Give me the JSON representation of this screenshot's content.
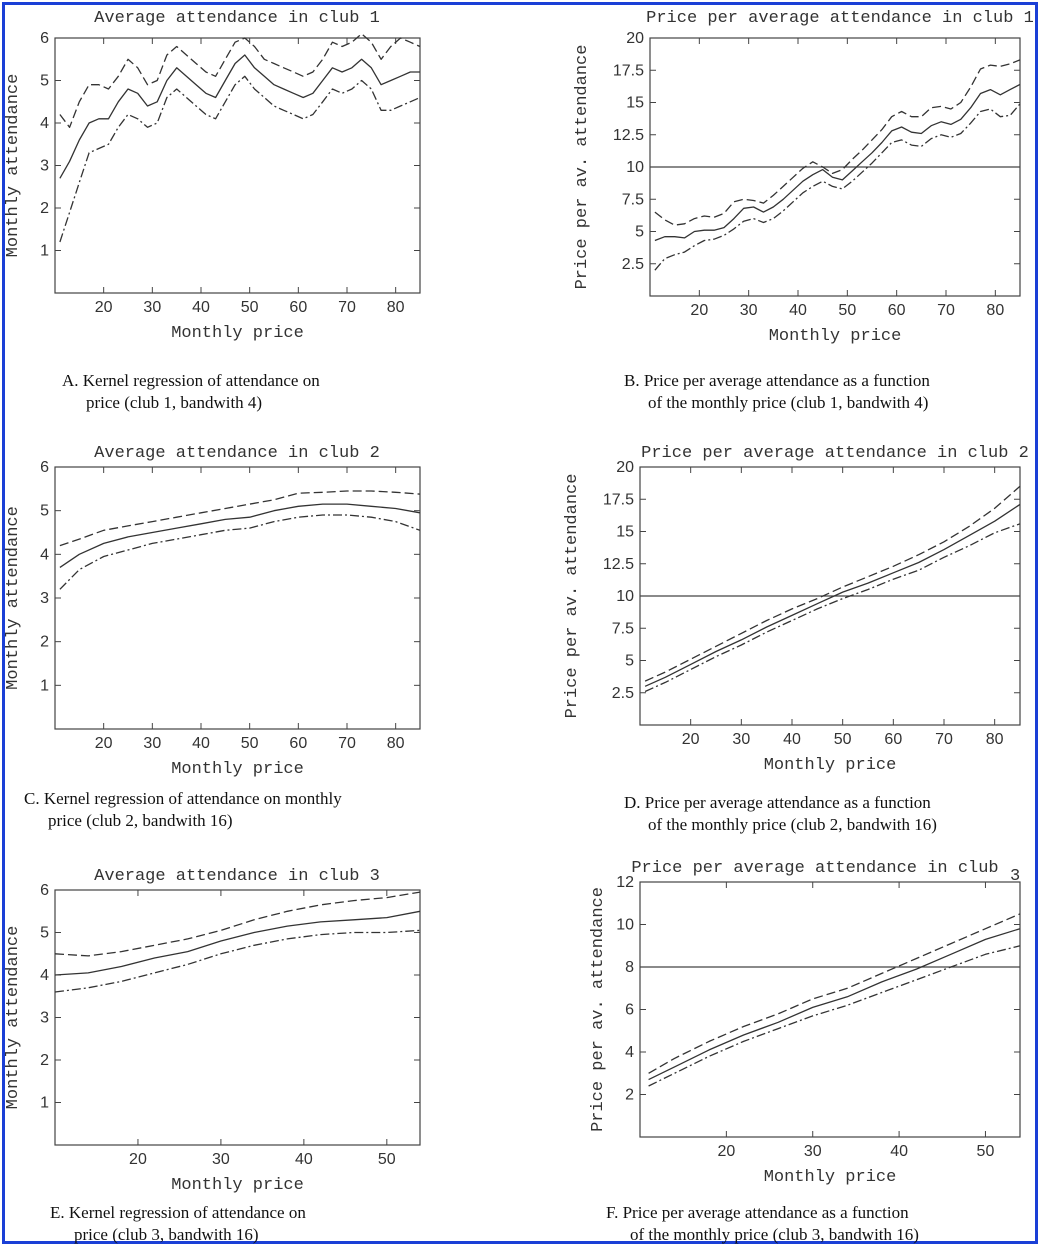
{
  "chart_data": [
    {
      "id": "A",
      "type": "line",
      "title": "Average attendance in club 1",
      "xlabel": "Monthly price",
      "ylabel": "Monthly attendance",
      "xlim": [
        10,
        85
      ],
      "ylim": [
        0,
        6
      ],
      "xticks": [
        20,
        30,
        40,
        50,
        60,
        70,
        80
      ],
      "yticks": [
        1,
        2,
        3,
        4,
        5,
        6
      ],
      "series": [
        {
          "style": "solid",
          "x": [
            11,
            13,
            15,
            17,
            19,
            21,
            23,
            25,
            27,
            29,
            31,
            33,
            35,
            37,
            39,
            41,
            43,
            45,
            47,
            49,
            51,
            53,
            55,
            57,
            59,
            61,
            63,
            65,
            67,
            69,
            71,
            73,
            75,
            77,
            79,
            81,
            83,
            85
          ],
          "values": [
            2.7,
            3.1,
            3.6,
            4.0,
            4.1,
            4.1,
            4.5,
            4.8,
            4.7,
            4.4,
            4.5,
            5.0,
            5.3,
            5.1,
            4.9,
            4.7,
            4.6,
            5.0,
            5.4,
            5.6,
            5.3,
            5.1,
            4.9,
            4.8,
            4.7,
            4.6,
            4.7,
            5.0,
            5.3,
            5.2,
            5.3,
            5.5,
            5.3,
            4.9,
            5.0,
            5.1,
            5.2,
            5.2
          ]
        },
        {
          "style": "dashed",
          "x": [
            11,
            13,
            15,
            17,
            19,
            21,
            23,
            25,
            27,
            29,
            31,
            33,
            35,
            37,
            39,
            41,
            43,
            45,
            47,
            49,
            51,
            53,
            55,
            57,
            59,
            61,
            63,
            65,
            67,
            69,
            71,
            73,
            75,
            77,
            79,
            81,
            83,
            85
          ],
          "values": [
            4.2,
            3.9,
            4.5,
            4.9,
            4.9,
            4.8,
            5.1,
            5.5,
            5.3,
            4.9,
            5.0,
            5.6,
            5.8,
            5.6,
            5.4,
            5.2,
            5.1,
            5.5,
            5.9,
            6.0,
            5.8,
            5.5,
            5.4,
            5.3,
            5.2,
            5.1,
            5.2,
            5.5,
            5.9,
            5.8,
            5.9,
            6.1,
            5.9,
            5.5,
            5.8,
            6.0,
            5.9,
            5.8
          ]
        },
        {
          "style": "dashed",
          "x": [
            11,
            13,
            15,
            17,
            19,
            21,
            23,
            25,
            27,
            29,
            31,
            33,
            35,
            37,
            39,
            41,
            43,
            45,
            47,
            49,
            51,
            53,
            55,
            57,
            59,
            61,
            63,
            65,
            67,
            69,
            71,
            73,
            75,
            77,
            79,
            81,
            83,
            85
          ],
          "values": [
            1.2,
            1.9,
            2.6,
            3.3,
            3.4,
            3.5,
            3.9,
            4.2,
            4.1,
            3.9,
            4.0,
            4.6,
            4.8,
            4.6,
            4.4,
            4.2,
            4.1,
            4.5,
            4.9,
            5.1,
            4.8,
            4.6,
            4.4,
            4.3,
            4.2,
            4.1,
            4.2,
            4.5,
            4.8,
            4.7,
            4.8,
            5.0,
            4.8,
            4.3,
            4.3,
            4.4,
            4.5,
            4.6
          ]
        }
      ],
      "caption": [
        "A. Kernel regression of attendance on",
        "price (club 1, bandwith 4)"
      ]
    },
    {
      "id": "B",
      "type": "line",
      "title": "Price per average attendance in club 1",
      "xlabel": "Monthly price",
      "ylabel": "Price per av. attendance",
      "xlim": [
        10,
        85
      ],
      "ylim": [
        0,
        20
      ],
      "xticks": [
        20,
        30,
        40,
        50,
        60,
        70,
        80
      ],
      "yticks": [
        2.5,
        5,
        7.5,
        10,
        12.5,
        15,
        17.5,
        20
      ],
      "hline": 10,
      "series": [
        {
          "style": "solid",
          "x": [
            11,
            13,
            15,
            17,
            19,
            21,
            23,
            25,
            27,
            29,
            31,
            33,
            35,
            37,
            39,
            41,
            43,
            45,
            47,
            49,
            51,
            53,
            55,
            57,
            59,
            61,
            63,
            65,
            67,
            69,
            71,
            73,
            75,
            77,
            79,
            81,
            83,
            85
          ],
          "values": [
            4.3,
            4.6,
            4.6,
            4.5,
            5.0,
            5.1,
            5.1,
            5.3,
            6.0,
            6.8,
            6.9,
            6.5,
            6.9,
            7.5,
            8.2,
            8.9,
            9.4,
            9.8,
            9.2,
            9.0,
            9.7,
            10.4,
            11.1,
            11.9,
            12.8,
            13.1,
            12.7,
            12.6,
            13.2,
            13.5,
            13.3,
            13.7,
            14.6,
            15.7,
            16.0,
            15.6,
            16.0,
            16.4
          ]
        },
        {
          "style": "dashed",
          "x": [
            11,
            13,
            15,
            17,
            19,
            21,
            23,
            25,
            27,
            29,
            31,
            33,
            35,
            37,
            39,
            41,
            43,
            45,
            47,
            49,
            51,
            53,
            55,
            57,
            59,
            61,
            63,
            65,
            67,
            69,
            71,
            73,
            75,
            77,
            79,
            81,
            83,
            85
          ],
          "values": [
            6.5,
            5.9,
            5.5,
            5.6,
            6.0,
            6.2,
            6.1,
            6.4,
            7.3,
            7.5,
            7.4,
            7.2,
            7.8,
            8.5,
            9.2,
            9.9,
            10.4,
            10.0,
            9.5,
            9.8,
            10.6,
            11.3,
            12.1,
            12.9,
            13.9,
            14.3,
            13.9,
            13.9,
            14.6,
            14.7,
            14.5,
            15.0,
            16.2,
            17.6,
            17.9,
            17.8,
            18.0,
            18.3
          ]
        },
        {
          "style": "dashed",
          "x": [
            11,
            13,
            15,
            17,
            19,
            21,
            23,
            25,
            27,
            29,
            31,
            33,
            35,
            37,
            39,
            41,
            43,
            45,
            47,
            49,
            51,
            53,
            55,
            57,
            59,
            61,
            63,
            65,
            67,
            69,
            71,
            73,
            75,
            77,
            79,
            81,
            83,
            85
          ],
          "values": [
            2.0,
            2.9,
            3.2,
            3.4,
            3.9,
            4.3,
            4.4,
            4.7,
            5.2,
            5.8,
            6.0,
            5.7,
            6.0,
            6.6,
            7.3,
            8.0,
            8.5,
            8.9,
            8.5,
            8.3,
            8.9,
            9.6,
            10.3,
            11.1,
            11.9,
            12.1,
            11.7,
            11.6,
            12.2,
            12.5,
            12.3,
            12.6,
            13.4,
            14.3,
            14.5,
            13.9,
            14.0,
            14.9
          ]
        }
      ],
      "caption": [
        "B. Price per average attendance as a function",
        "of the monthly price (club 1, bandwith 4)"
      ]
    },
    {
      "id": "C",
      "type": "line",
      "title": "Average attendance in club 2",
      "xlabel": "Monthly price",
      "ylabel": "Monthly attendance",
      "xlim": [
        10,
        85
      ],
      "ylim": [
        0,
        6
      ],
      "xticks": [
        20,
        30,
        40,
        50,
        60,
        70,
        80
      ],
      "yticks": [
        1,
        2,
        3,
        4,
        5,
        6
      ],
      "series": [
        {
          "style": "solid",
          "x": [
            11,
            15,
            20,
            25,
            30,
            35,
            40,
            45,
            50,
            55,
            60,
            65,
            70,
            75,
            80,
            85
          ],
          "values": [
            3.7,
            4.0,
            4.25,
            4.4,
            4.5,
            4.6,
            4.7,
            4.8,
            4.85,
            5.0,
            5.1,
            5.15,
            5.15,
            5.1,
            5.05,
            4.95
          ]
        },
        {
          "style": "dashed",
          "x": [
            11,
            15,
            20,
            25,
            30,
            35,
            40,
            45,
            50,
            55,
            60,
            65,
            70,
            75,
            80,
            85
          ],
          "values": [
            4.2,
            4.35,
            4.55,
            4.65,
            4.75,
            4.85,
            4.95,
            5.05,
            5.15,
            5.25,
            5.4,
            5.42,
            5.45,
            5.45,
            5.42,
            5.38
          ]
        },
        {
          "style": "dashed",
          "x": [
            11,
            15,
            20,
            25,
            30,
            35,
            40,
            45,
            50,
            55,
            60,
            65,
            70,
            75,
            80,
            85
          ],
          "values": [
            3.2,
            3.65,
            3.95,
            4.1,
            4.25,
            4.35,
            4.45,
            4.55,
            4.6,
            4.75,
            4.85,
            4.9,
            4.9,
            4.85,
            4.75,
            4.55
          ]
        }
      ],
      "caption": [
        "C. Kernel regression of attendance on monthly",
        "price (club 2, bandwith 16)"
      ]
    },
    {
      "id": "D",
      "type": "line",
      "title": "Price per average attendance in club 2",
      "xlabel": "Monthly price",
      "ylabel": "Price per av. attendance",
      "xlim": [
        10,
        85
      ],
      "ylim": [
        0,
        20
      ],
      "xticks": [
        20,
        30,
        40,
        50,
        60,
        70,
        80
      ],
      "yticks": [
        2.5,
        5,
        7.5,
        10,
        12.5,
        15,
        17.5,
        20
      ],
      "hline": 10,
      "series": [
        {
          "style": "solid",
          "x": [
            11,
            15,
            20,
            25,
            30,
            35,
            40,
            45,
            50,
            55,
            60,
            65,
            70,
            75,
            80,
            85
          ],
          "values": [
            3.0,
            3.7,
            4.7,
            5.7,
            6.6,
            7.6,
            8.5,
            9.4,
            10.3,
            11.0,
            11.8,
            12.6,
            13.6,
            14.7,
            15.8,
            17.1
          ]
        },
        {
          "style": "dashed",
          "x": [
            11,
            15,
            20,
            25,
            30,
            35,
            40,
            45,
            50,
            55,
            60,
            65,
            70,
            75,
            80,
            85
          ],
          "values": [
            3.4,
            4.1,
            5.1,
            6.1,
            7.1,
            8.1,
            9.0,
            9.8,
            10.7,
            11.5,
            12.3,
            13.2,
            14.2,
            15.4,
            16.8,
            18.5
          ]
        },
        {
          "style": "dashed",
          "x": [
            11,
            15,
            20,
            25,
            30,
            35,
            40,
            45,
            50,
            55,
            60,
            65,
            70,
            75,
            80,
            85
          ],
          "values": [
            2.6,
            3.3,
            4.3,
            5.3,
            6.2,
            7.2,
            8.1,
            9.0,
            9.8,
            10.5,
            11.3,
            12.0,
            13.0,
            13.9,
            14.9,
            15.6
          ]
        }
      ],
      "caption": [
        "D. Price per average attendance as a function",
        "of the monthly price (club 2, bandwith 16)"
      ]
    },
    {
      "id": "E",
      "type": "line",
      "title": "Average attendance in club 3",
      "xlabel": "Monthly price",
      "ylabel": "Monthly attendance",
      "xlim": [
        10,
        54
      ],
      "ylim": [
        0,
        6
      ],
      "xticks": [
        20,
        30,
        40,
        50
      ],
      "yticks": [
        1,
        2,
        3,
        4,
        5,
        6
      ],
      "series": [
        {
          "style": "solid",
          "x": [
            10,
            14,
            18,
            22,
            26,
            30,
            34,
            38,
            42,
            46,
            50,
            54
          ],
          "values": [
            4.0,
            4.05,
            4.2,
            4.4,
            4.55,
            4.8,
            5.0,
            5.15,
            5.25,
            5.3,
            5.35,
            5.5
          ]
        },
        {
          "style": "dashed",
          "x": [
            10,
            14,
            18,
            22,
            26,
            30,
            34,
            38,
            42,
            46,
            50,
            54
          ],
          "values": [
            4.5,
            4.45,
            4.55,
            4.7,
            4.85,
            5.05,
            5.3,
            5.5,
            5.65,
            5.75,
            5.82,
            5.95
          ]
        },
        {
          "style": "dashed",
          "x": [
            10,
            14,
            18,
            22,
            26,
            30,
            34,
            38,
            42,
            46,
            50,
            54
          ],
          "values": [
            3.6,
            3.7,
            3.85,
            4.05,
            4.25,
            4.5,
            4.7,
            4.85,
            4.95,
            5.0,
            5.0,
            5.05
          ]
        }
      ],
      "caption": [
        "E. Kernel regression of attendance on",
        "price (club 3, bandwith 16)"
      ]
    },
    {
      "id": "F",
      "type": "line",
      "title": "Price per average attendance in club",
      "title_suffix": "3",
      "xlabel": "Monthly price",
      "ylabel": "Price per av. attendance",
      "xlim": [
        10,
        54
      ],
      "ylim": [
        0,
        12
      ],
      "xticks": [
        20,
        30,
        40,
        50
      ],
      "yticks": [
        2,
        4,
        6,
        8,
        10,
        12
      ],
      "hline": 8,
      "series": [
        {
          "style": "solid",
          "x": [
            11,
            14,
            18,
            22,
            26,
            30,
            34,
            38,
            42,
            46,
            50,
            54
          ],
          "values": [
            2.7,
            3.3,
            4.1,
            4.8,
            5.4,
            6.1,
            6.6,
            7.3,
            7.9,
            8.6,
            9.3,
            9.8
          ]
        },
        {
          "style": "dashed",
          "x": [
            11,
            14,
            18,
            22,
            26,
            30,
            34,
            38,
            42,
            46,
            50,
            54
          ],
          "values": [
            3.0,
            3.7,
            4.5,
            5.2,
            5.8,
            6.5,
            7.0,
            7.7,
            8.4,
            9.1,
            9.8,
            10.5
          ]
        },
        {
          "style": "dashed",
          "x": [
            11,
            14,
            18,
            22,
            26,
            30,
            34,
            38,
            42,
            46,
            50,
            54
          ],
          "values": [
            2.4,
            3.0,
            3.8,
            4.5,
            5.1,
            5.7,
            6.2,
            6.8,
            7.4,
            8.0,
            8.6,
            9.0
          ]
        }
      ],
      "caption": [
        "F. Price per average attendance as a function",
        "of the monthly price (club 3, bandwith 16)"
      ]
    }
  ]
}
